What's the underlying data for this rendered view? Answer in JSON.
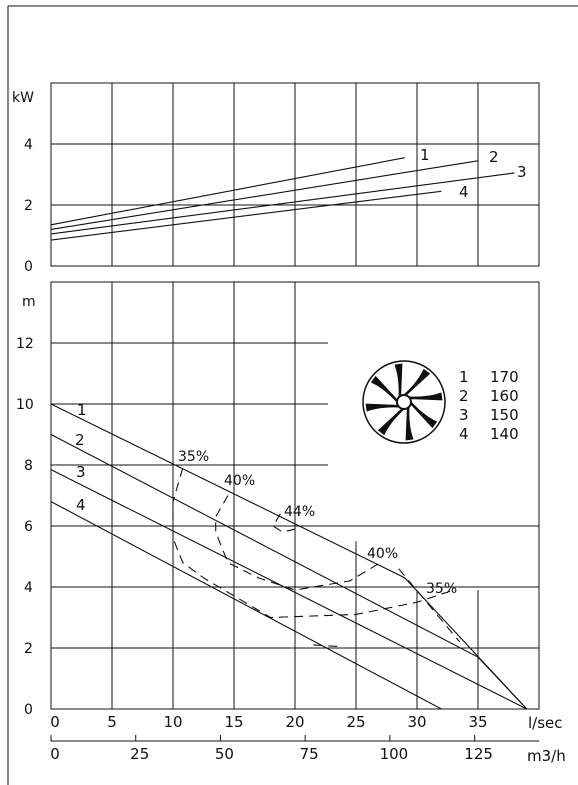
{
  "chart_data": [
    {
      "type": "line",
      "panel": "power",
      "ylabel": "kW",
      "ylim": [
        0,
        6
      ],
      "yticks": [
        "0",
        "2",
        "4"
      ],
      "xlim": [
        0,
        40
      ],
      "grid": true,
      "series": [
        {
          "name": "1",
          "x": [
            0,
            29
          ],
          "y": [
            1.35,
            3.55
          ]
        },
        {
          "name": "2",
          "x": [
            0,
            35
          ],
          "y": [
            1.2,
            3.45
          ]
        },
        {
          "name": "3",
          "x": [
            0,
            38
          ],
          "y": [
            1.05,
            3.05
          ]
        },
        {
          "name": "4",
          "x": [
            0,
            32
          ],
          "y": [
            0.85,
            2.45
          ]
        }
      ]
    },
    {
      "type": "line",
      "panel": "head",
      "ylabel": "m",
      "ylim": [
        0,
        14
      ],
      "yticks": [
        "0",
        "2",
        "4",
        "6",
        "8",
        "10",
        "12"
      ],
      "xlim": [
        0,
        40
      ],
      "grid": true,
      "series": [
        {
          "name": "1",
          "x": [
            0,
            29,
            39
          ],
          "y": [
            10,
            4.3,
            0
          ]
        },
        {
          "name": "2",
          "x": [
            0,
            35,
            39
          ],
          "y": [
            9,
            1.7,
            0
          ]
        },
        {
          "name": "3",
          "x": [
            0,
            39
          ],
          "y": [
            7.85,
            0
          ]
        },
        {
          "name": "4",
          "x": [
            0,
            32
          ],
          "y": [
            6.8,
            0
          ]
        }
      ],
      "efficiency_contours": [
        {
          "label": "35%",
          "x": [
            10.8,
            10,
            10,
            10.8,
            12.5,
            18,
            25,
            30,
            33
          ],
          "y": [
            7.9,
            6.8,
            5.6,
            4.8,
            4.3,
            3.0,
            3.1,
            3.5,
            3.9
          ]
        },
        {
          "label": "40%",
          "x": [
            14.5,
            13.5,
            13.5,
            14.5,
            17,
            20,
            24.5,
            27
          ],
          "y": [
            7.0,
            6.3,
            5.8,
            4.8,
            4.3,
            3.9,
            4.2,
            4.8
          ]
        },
        {
          "label": "44%",
          "x": [
            18.8,
            18.2,
            19,
            20
          ],
          "y": [
            6.4,
            6.0,
            5.8,
            5.9
          ]
        },
        {
          "label": "35%",
          "x": [
            28.5,
            33.5
          ],
          "y": [
            4.6,
            2.2
          ]
        },
        {
          "label": "",
          "x": [
            21.5,
            23.5
          ],
          "y": [
            2.1,
            2.05
          ]
        }
      ],
      "curve_labels": [
        "1",
        "2",
        "3",
        "4"
      ],
      "contour_labels": [
        "35%",
        "40%",
        "44%",
        "40%",
        "35%"
      ],
      "legend": [
        {
          "curve": "1",
          "diameter": "170"
        },
        {
          "curve": "2",
          "diameter": "160"
        },
        {
          "curve": "3",
          "diameter": "150"
        },
        {
          "curve": "4",
          "diameter": "140"
        }
      ]
    }
  ],
  "x_axes": {
    "flow_ls": {
      "unit": "l/sec",
      "ticks": [
        "0",
        "5",
        "10",
        "15",
        "20",
        "25",
        "30",
        "35"
      ]
    },
    "flow_m3h": {
      "unit": "m3/h",
      "ticks": [
        "0",
        "25",
        "50",
        "75",
        "100",
        "125"
      ]
    }
  },
  "icons": {
    "impeller": "impeller-icon"
  }
}
